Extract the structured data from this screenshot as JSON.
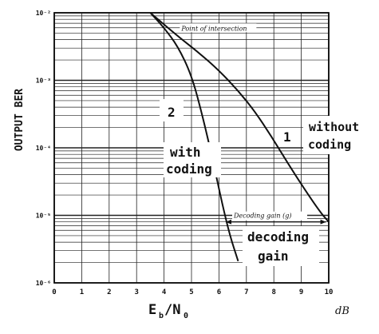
{
  "chart_data": {
    "type": "line",
    "xlabel": "E",
    "xlabel_sub": "b",
    "xlabel_den": "/N",
    "xlabel_den_sub": "0",
    "x_unit": "dB",
    "ylabel": "OUTPUT BER",
    "xlim": [
      0,
      10
    ],
    "ylim": [
      1e-06,
      0.01
    ],
    "y_scale": "log",
    "grid": true,
    "x_ticks": [
      "0",
      "1",
      "2",
      "3",
      "4",
      "5",
      "6",
      "7",
      "8",
      "9",
      "10"
    ],
    "y_ticks": [
      {
        "value": 0.01,
        "label": "10⁻²"
      },
      {
        "value": 0.001,
        "label": "10⁻³"
      },
      {
        "value": 0.0001,
        "label": "10⁻⁴"
      },
      {
        "value": 1e-05,
        "label": "10⁻⁵"
      },
      {
        "value": 1e-06,
        "label": "10⁻⁶"
      }
    ],
    "series": [
      {
        "id": "without-coding",
        "labels": [
          "1",
          "without",
          "coding"
        ],
        "color": "#111111",
        "x": [
          3.5,
          4.5,
          5.3,
          6.0,
          6.7,
          7.3,
          7.9,
          8.5,
          9.1,
          9.7,
          10.0
        ],
        "y": [
          0.01,
          0.0045,
          0.0025,
          0.0014,
          0.0007,
          0.00035,
          0.00015,
          6e-05,
          2.5e-05,
          1.1e-05,
          8e-06
        ]
      },
      {
        "id": "with-coding",
        "labels": [
          "2",
          "with",
          "coding"
        ],
        "color": "#111111",
        "x": [
          3.5,
          4.0,
          4.5,
          5.0,
          5.4,
          5.8,
          6.1,
          6.4,
          6.7
        ],
        "y": [
          0.01,
          0.006,
          0.0032,
          0.0012,
          0.0003,
          6e-05,
          1.6e-05,
          5e-06,
          2.1e-06
        ]
      }
    ],
    "annotations": {
      "intersection": {
        "label": "Point of intersection",
        "x": 4.4,
        "y": 0.0045
      },
      "decoding_gain": {
        "label": "Decoding gain (g)",
        "x_from": 6.25,
        "x_to": 9.9,
        "y": 8e-06
      },
      "decoding_gain_big": [
        "decoding",
        "gain"
      ]
    }
  }
}
